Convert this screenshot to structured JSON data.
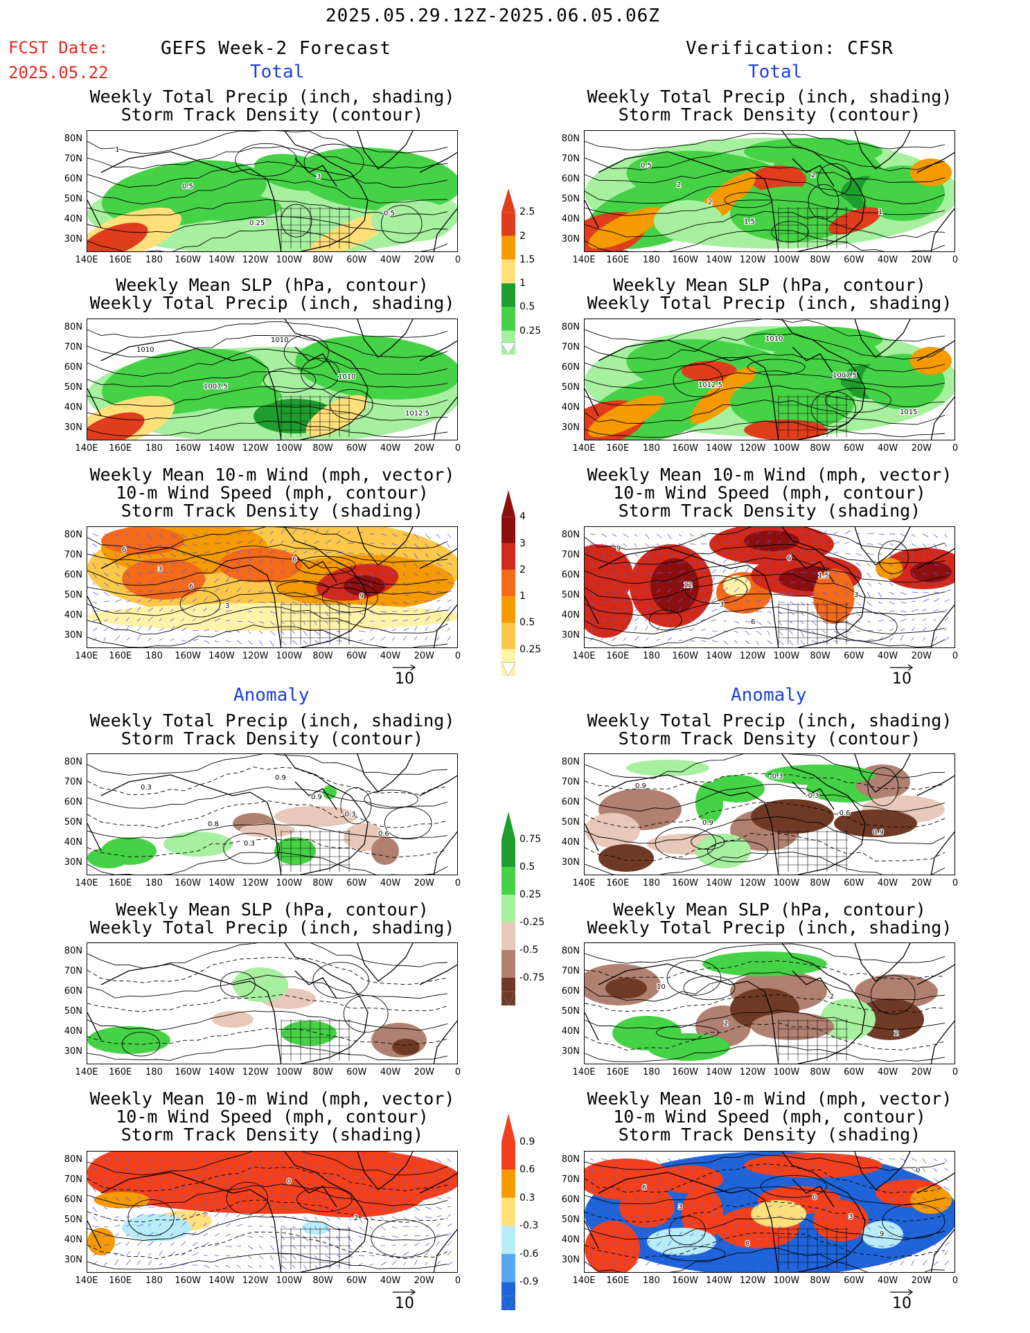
{
  "header": {
    "date_range": "2025.05.29.12Z-2025.06.05.06Z",
    "fcst_label": "FCST Date:",
    "fcst_date": "2025.05.22",
    "left_title": "GEFS Week-2 Forecast",
    "right_title": "Verification: CFSR"
  },
  "sections": {
    "total": "Total",
    "anomaly": "Anomaly"
  },
  "panel_titles": {
    "precip_storm": [
      "Weekly Total Precip (inch, shading)",
      "Storm Track Density (contour)"
    ],
    "slp_precip": [
      "Weekly Mean SLP (hPa, contour)",
      "Weekly Total Precip (inch, shading)"
    ],
    "wind_storm": [
      "Weekly Mean 10-m Wind (mph, vector)",
      "10-m Wind Speed (mph, contour)",
      "Storm Track Density (shading)"
    ]
  },
  "axes": {
    "lat_labels": [
      "80N",
      "70N",
      "60N",
      "50N",
      "40N",
      "30N"
    ],
    "lon_labels": [
      "140E",
      "160E",
      "180",
      "160W",
      "140W",
      "120W",
      "100W",
      "80W",
      "60W",
      "40W",
      "20W",
      "0"
    ]
  },
  "colorbars": {
    "precip_total": {
      "labels": [
        "2.5",
        "2",
        "1.5",
        "1",
        "0.5",
        "0.25"
      ],
      "colors": [
        "#e03c1e",
        "#f59a00",
        "#ffe07a",
        "#1e9e2e",
        "#46d246",
        "#a6f0a0"
      ]
    },
    "storm_total": {
      "labels": [
        "4",
        "3",
        "2",
        "1",
        "0.5",
        "0.25"
      ],
      "colors": [
        "#8c0f0f",
        "#d22a1a",
        "#f26a1a",
        "#f59a00",
        "#fbc84a",
        "#fff3a8"
      ]
    },
    "precip_anom": {
      "labels": [
        "0.75",
        "0.5",
        "0.25",
        "-0.25",
        "-0.5",
        "-0.75"
      ],
      "colors": [
        "#1e9e2e",
        "#46d246",
        "#a6f0a0",
        "#e8c8b8",
        "#b08070",
        "#6e3a26"
      ]
    },
    "storm_anom": {
      "labels": [
        "0.9",
        "0.6",
        "0.3",
        "-0.3",
        "-0.6",
        "-0.9"
      ],
      "colors": [
        "#f2401c",
        "#f59a00",
        "#ffe07a",
        "#b8ecf8",
        "#58a8f0",
        "#1e64d8"
      ]
    }
  },
  "contour_labels": {
    "fc_total_precip": [
      "1",
      "0.5",
      "0.25",
      "3",
      "0.5"
    ],
    "fc_total_slp": [
      "1010",
      "1007.5",
      "1010",
      "1010",
      "1012.5"
    ],
    "fc_total_wind": [
      "3",
      "3",
      "6",
      "9",
      "6",
      "6"
    ],
    "vf_total_precip": [
      "2",
      "1.5",
      "2",
      "1",
      "0.5",
      "2"
    ],
    "vf_total_slp": [
      "1012.5",
      "1010",
      "1007.5",
      "1015"
    ],
    "vf_total_wind": [
      "3",
      "6",
      "3",
      "9",
      "12",
      "6",
      "1.5"
    ],
    "fc_anom_precip": [
      "0.3",
      "0.9",
      "0.6",
      "0.3",
      "0.8",
      "0.9",
      "-0.3"
    ],
    "fc_anom_wind": [
      "0",
      "2"
    ],
    "vf_anom_precip": [
      "-0.3",
      "0.9",
      "0.9",
      "0.9",
      "-0.3",
      "-0.6"
    ],
    "vf_anom_slp": [
      "-2",
      "2",
      "10",
      "2"
    ],
    "vf_anom_wind": [
      "3",
      "0",
      "3",
      "8",
      "0",
      "9",
      "6"
    ]
  },
  "vector_ref": "10"
}
